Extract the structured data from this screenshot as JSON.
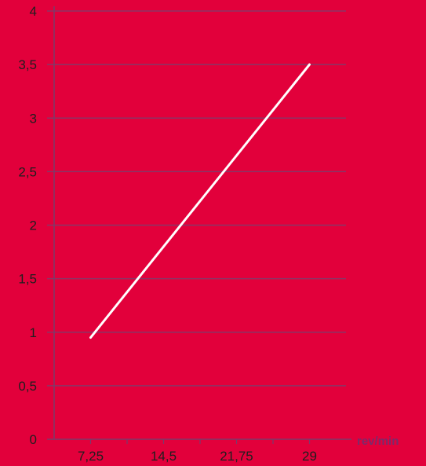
{
  "colors": {
    "background": "#e2003b",
    "grid": "#8a3566",
    "axis": "#7a3a6b",
    "line": "#ffffff",
    "tick_text": "#1f1f1f",
    "unit_text": "#7b2a6b"
  },
  "chart_data": {
    "type": "line",
    "title": "",
    "xlabel": "rev/min",
    "ylabel": "",
    "x_ticks": [
      "7,25",
      "14,5",
      "21,75",
      "29"
    ],
    "y_ticks": [
      "0",
      "0,5",
      "1",
      "1,5",
      "2",
      "2,5",
      "3",
      "3,5",
      "4"
    ],
    "xlim": [
      3.625,
      32.625
    ],
    "ylim": [
      0,
      4
    ],
    "grid": true,
    "series": [
      {
        "color": "#ffffff",
        "points": [
          {
            "x": 7.25,
            "y": 0.95
          },
          {
            "x": 29,
            "y": 3.5
          }
        ]
      }
    ]
  }
}
